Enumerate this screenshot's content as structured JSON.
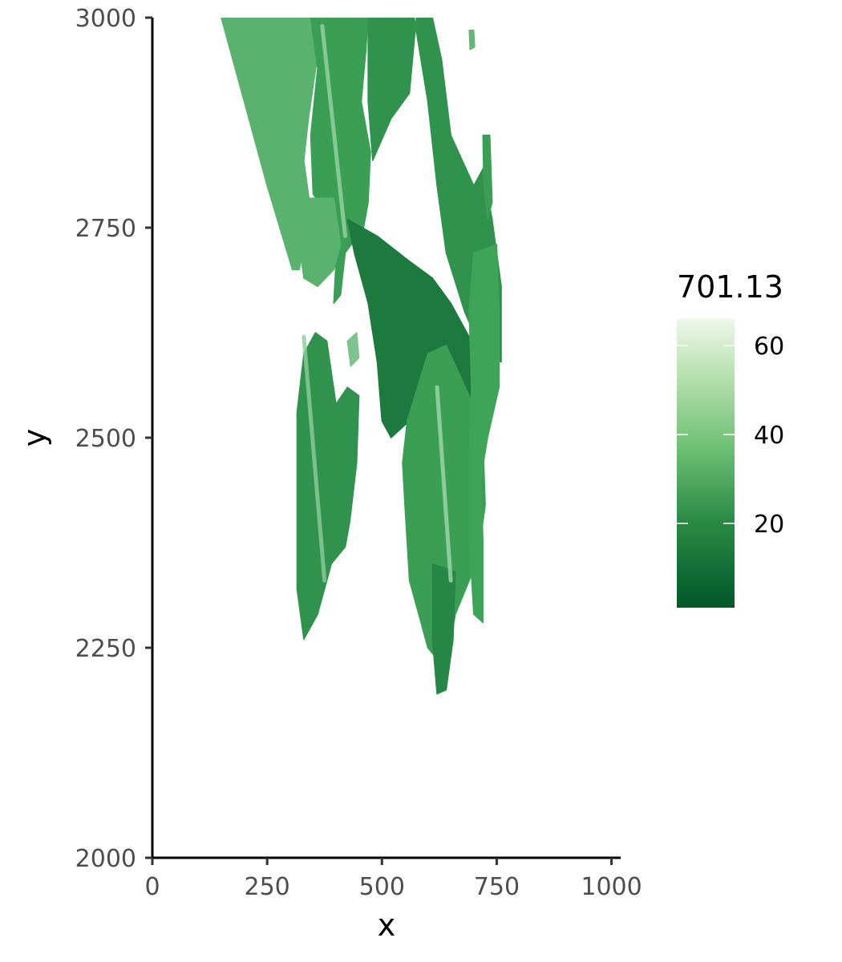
{
  "chart_data": {
    "type": "heatmap",
    "title": "",
    "xlabel": "x",
    "ylabel": "y",
    "xlim": [
      0,
      1020
    ],
    "ylim": [
      2000,
      3000
    ],
    "x_ticks": [
      0,
      250,
      500,
      750,
      1000
    ],
    "x_tick_labels": [
      "0",
      "250",
      "500",
      "750",
      "1000"
    ],
    "y_ticks": [
      2000,
      2250,
      2500,
      2750,
      3000
    ],
    "y_tick_labels": [
      "2000",
      "2250",
      "2500",
      "2750",
      "3000"
    ],
    "grid": false,
    "legend": {
      "title": "701.13",
      "placement": "right",
      "range": [
        1,
        66
      ],
      "ticks": [
        20,
        40,
        60
      ],
      "tick_labels": [
        "20",
        "40",
        "60"
      ]
    },
    "colors": {
      "low": "#00582a",
      "mid": "#41a85a",
      "high": "#eef8ec",
      "axis": "#000000",
      "tick_text": "#4d4d4d"
    },
    "regions": [
      {
        "name": "top-left leaf",
        "mean_value": 38,
        "points": [
          [
            150,
            3000
          ],
          [
            345,
            3000
          ],
          [
            360,
            2955
          ],
          [
            340,
            2880
          ],
          [
            330,
            2830
          ],
          [
            345,
            2770
          ],
          [
            320,
            2700
          ],
          [
            305,
            2700
          ],
          [
            250,
            2800
          ],
          [
            190,
            2920
          ]
        ]
      },
      {
        "name": "upper center stem",
        "mean_value": 30,
        "points": [
          [
            345,
            3000
          ],
          [
            470,
            3000
          ],
          [
            465,
            2960
          ],
          [
            455,
            2900
          ],
          [
            475,
            2840
          ],
          [
            470,
            2780
          ],
          [
            460,
            2750
          ],
          [
            420,
            2720
          ],
          [
            410,
            2670
          ],
          [
            395,
            2660
          ],
          [
            400,
            2710
          ],
          [
            390,
            2760
          ],
          [
            350,
            2790
          ],
          [
            345,
            2860
          ],
          [
            360,
            2940
          ]
        ]
      },
      {
        "name": "left blade",
        "mean_value": 38,
        "points": [
          [
            325,
            2785
          ],
          [
            395,
            2785
          ],
          [
            410,
            2730
          ],
          [
            395,
            2700
          ],
          [
            360,
            2680
          ],
          [
            330,
            2690
          ],
          [
            318,
            2740
          ]
        ]
      },
      {
        "name": "upper right cluster",
        "mean_value": 25,
        "points": [
          [
            470,
            3000
          ],
          [
            570,
            3000
          ],
          [
            600,
            2900
          ],
          [
            620,
            2800
          ],
          [
            640,
            2720
          ],
          [
            680,
            2650
          ],
          [
            720,
            2600
          ],
          [
            760,
            2590
          ],
          [
            760,
            2680
          ],
          [
            740,
            2760
          ],
          [
            720,
            2820
          ],
          [
            700,
            2800
          ],
          [
            650,
            2860
          ],
          [
            630,
            2950
          ],
          [
            610,
            3000
          ],
          [
            575,
            3000
          ],
          [
            560,
            2910
          ],
          [
            520,
            2880
          ],
          [
            480,
            2830
          ],
          [
            470,
            2900
          ]
        ]
      },
      {
        "name": "middle diagonal leaf",
        "mean_value": 15,
        "points": [
          [
            425,
            2760
          ],
          [
            490,
            2740
          ],
          [
            560,
            2710
          ],
          [
            610,
            2690
          ],
          [
            650,
            2660
          ],
          [
            690,
            2620
          ],
          [
            720,
            2590
          ],
          [
            710,
            2530
          ],
          [
            660,
            2510
          ],
          [
            600,
            2530
          ],
          [
            560,
            2520
          ],
          [
            520,
            2500
          ],
          [
            500,
            2520
          ],
          [
            490,
            2590
          ],
          [
            470,
            2660
          ],
          [
            440,
            2720
          ]
        ]
      },
      {
        "name": "left hanging leaf",
        "mean_value": 25,
        "points": [
          [
            315,
            2530
          ],
          [
            330,
            2600
          ],
          [
            355,
            2625
          ],
          [
            380,
            2615
          ],
          [
            400,
            2540
          ],
          [
            425,
            2560
          ],
          [
            450,
            2550
          ],
          [
            445,
            2470
          ],
          [
            430,
            2400
          ],
          [
            420,
            2370
          ],
          [
            390,
            2350
          ],
          [
            360,
            2290
          ],
          [
            330,
            2260
          ],
          [
            315,
            2320
          ]
        ]
      },
      {
        "name": "right hanging leaf",
        "mean_value": 30,
        "points": [
          [
            555,
            2520
          ],
          [
            600,
            2600
          ],
          [
            640,
            2610
          ],
          [
            690,
            2550
          ],
          [
            720,
            2500
          ],
          [
            725,
            2420
          ],
          [
            710,
            2360
          ],
          [
            690,
            2330
          ],
          [
            660,
            2290
          ],
          [
            650,
            2260
          ],
          [
            630,
            2230
          ],
          [
            600,
            2250
          ],
          [
            580,
            2290
          ],
          [
            560,
            2330
          ],
          [
            550,
            2420
          ],
          [
            545,
            2470
          ]
        ]
      },
      {
        "name": "bottom stem",
        "mean_value": 20,
        "points": [
          [
            610,
            2350
          ],
          [
            660,
            2340
          ],
          [
            655,
            2260
          ],
          [
            640,
            2200
          ],
          [
            620,
            2195
          ],
          [
            610,
            2260
          ]
        ]
      },
      {
        "name": "far right leaf",
        "mean_value": 32,
        "points": [
          [
            700,
            2720
          ],
          [
            750,
            2730
          ],
          [
            755,
            2650
          ],
          [
            755,
            2560
          ],
          [
            730,
            2500
          ],
          [
            715,
            2450
          ],
          [
            720,
            2380
          ],
          [
            720,
            2280
          ],
          [
            700,
            2290
          ],
          [
            690,
            2380
          ],
          [
            690,
            2470
          ],
          [
            695,
            2560
          ],
          [
            690,
            2650
          ]
        ]
      },
      {
        "name": "top right sliver",
        "mean_value": 40,
        "points": [
          [
            690,
            2985
          ],
          [
            700,
            2985
          ],
          [
            702,
            2965
          ],
          [
            692,
            2962
          ]
        ]
      },
      {
        "name": "right edge sliver",
        "mean_value": 30,
        "points": [
          [
            720,
            2860
          ],
          [
            735,
            2860
          ],
          [
            740,
            2780
          ],
          [
            730,
            2760
          ],
          [
            722,
            2800
          ]
        ]
      },
      {
        "name": "small pale patch",
        "mean_value": 45,
        "points": [
          [
            425,
            2615
          ],
          [
            445,
            2625
          ],
          [
            450,
            2595
          ],
          [
            432,
            2585
          ]
        ]
      }
    ],
    "highlights": [
      {
        "name": "midrib left",
        "value": 48,
        "from": [
          330,
          2620
        ],
        "to": [
          375,
          2330
        ]
      },
      {
        "name": "midrib right",
        "value": 52,
        "from": [
          620,
          2560
        ],
        "to": [
          650,
          2330
        ]
      },
      {
        "name": "stem highlight",
        "value": 50,
        "from": [
          370,
          2990
        ],
        "to": [
          420,
          2740
        ]
      }
    ]
  }
}
